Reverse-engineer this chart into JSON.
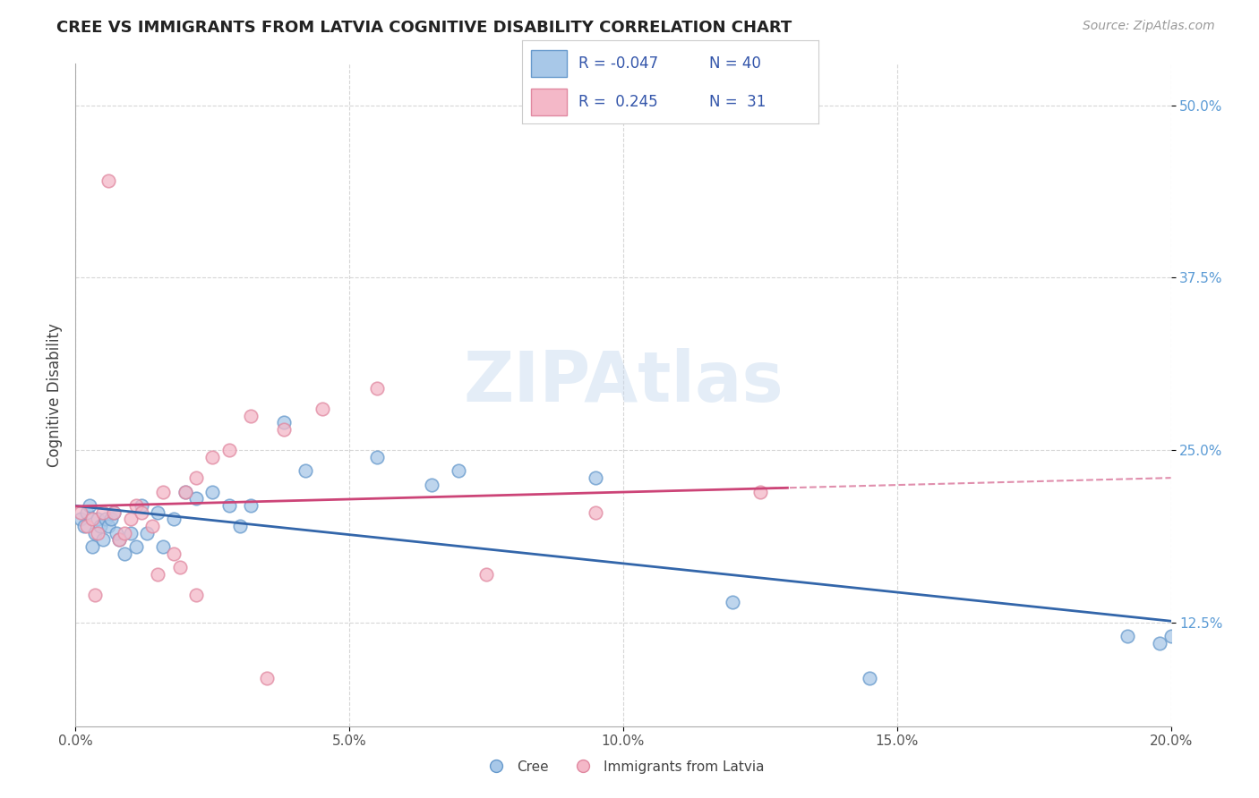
{
  "title": "CREE VS IMMIGRANTS FROM LATVIA COGNITIVE DISABILITY CORRELATION CHART",
  "source": "Source: ZipAtlas.com",
  "xlabel_vals": [
    0.0,
    5.0,
    10.0,
    15.0,
    20.0
  ],
  "ylabel_vals": [
    12.5,
    25.0,
    37.5,
    50.0
  ],
  "xlim": [
    0.0,
    20.0
  ],
  "ylim": [
    5.0,
    53.0
  ],
  "ylabel": "Cognitive Disability",
  "series1_color": "#a8c8e8",
  "series2_color": "#f4b8c8",
  "series1_edge": "#6699cc",
  "series2_edge": "#e088a0",
  "line1_color": "#3366aa",
  "line2_color": "#cc4477",
  "watermark_color": "#c5d8ee",
  "legend_r1": "-0.047",
  "legend_n1": "40",
  "legend_r2": "0.245",
  "legend_n2": "31",
  "cree_x": [
    0.1,
    0.15,
    0.2,
    0.25,
    0.3,
    0.35,
    0.4,
    0.45,
    0.5,
    0.55,
    0.6,
    0.65,
    0.7,
    0.75,
    0.8,
    0.9,
    1.0,
    1.1,
    1.2,
    1.3,
    1.5,
    1.6,
    1.8,
    2.0,
    2.2,
    2.5,
    2.8,
    3.0,
    3.2,
    3.8,
    4.2,
    5.5,
    6.5,
    7.0,
    9.5,
    12.0,
    14.5,
    19.2,
    19.8,
    20.0
  ],
  "cree_y": [
    20.0,
    19.5,
    20.5,
    21.0,
    18.0,
    19.0,
    20.0,
    19.5,
    18.5,
    20.0,
    19.5,
    20.0,
    20.5,
    19.0,
    18.5,
    17.5,
    19.0,
    18.0,
    21.0,
    19.0,
    20.5,
    18.0,
    20.0,
    22.0,
    21.5,
    22.0,
    21.0,
    19.5,
    21.0,
    27.0,
    23.5,
    24.5,
    22.5,
    23.5,
    23.0,
    14.0,
    8.5,
    11.5,
    11.0,
    11.5
  ],
  "latvia_x": [
    0.1,
    0.2,
    0.3,
    0.4,
    0.5,
    0.6,
    0.7,
    0.8,
    0.9,
    1.0,
    1.1,
    1.2,
    1.4,
    1.6,
    1.8,
    2.0,
    2.2,
    2.5,
    2.8,
    3.2,
    3.8,
    4.5,
    5.5,
    7.5,
    9.5,
    12.5,
    2.2,
    1.5,
    0.35,
    1.9,
    3.5
  ],
  "latvia_y": [
    20.5,
    19.5,
    20.0,
    19.0,
    20.5,
    44.5,
    20.5,
    18.5,
    19.0,
    20.0,
    21.0,
    20.5,
    19.5,
    22.0,
    17.5,
    22.0,
    23.0,
    24.5,
    25.0,
    27.5,
    26.5,
    28.0,
    29.5,
    16.0,
    20.5,
    22.0,
    14.5,
    16.0,
    14.5,
    16.5,
    8.5
  ]
}
